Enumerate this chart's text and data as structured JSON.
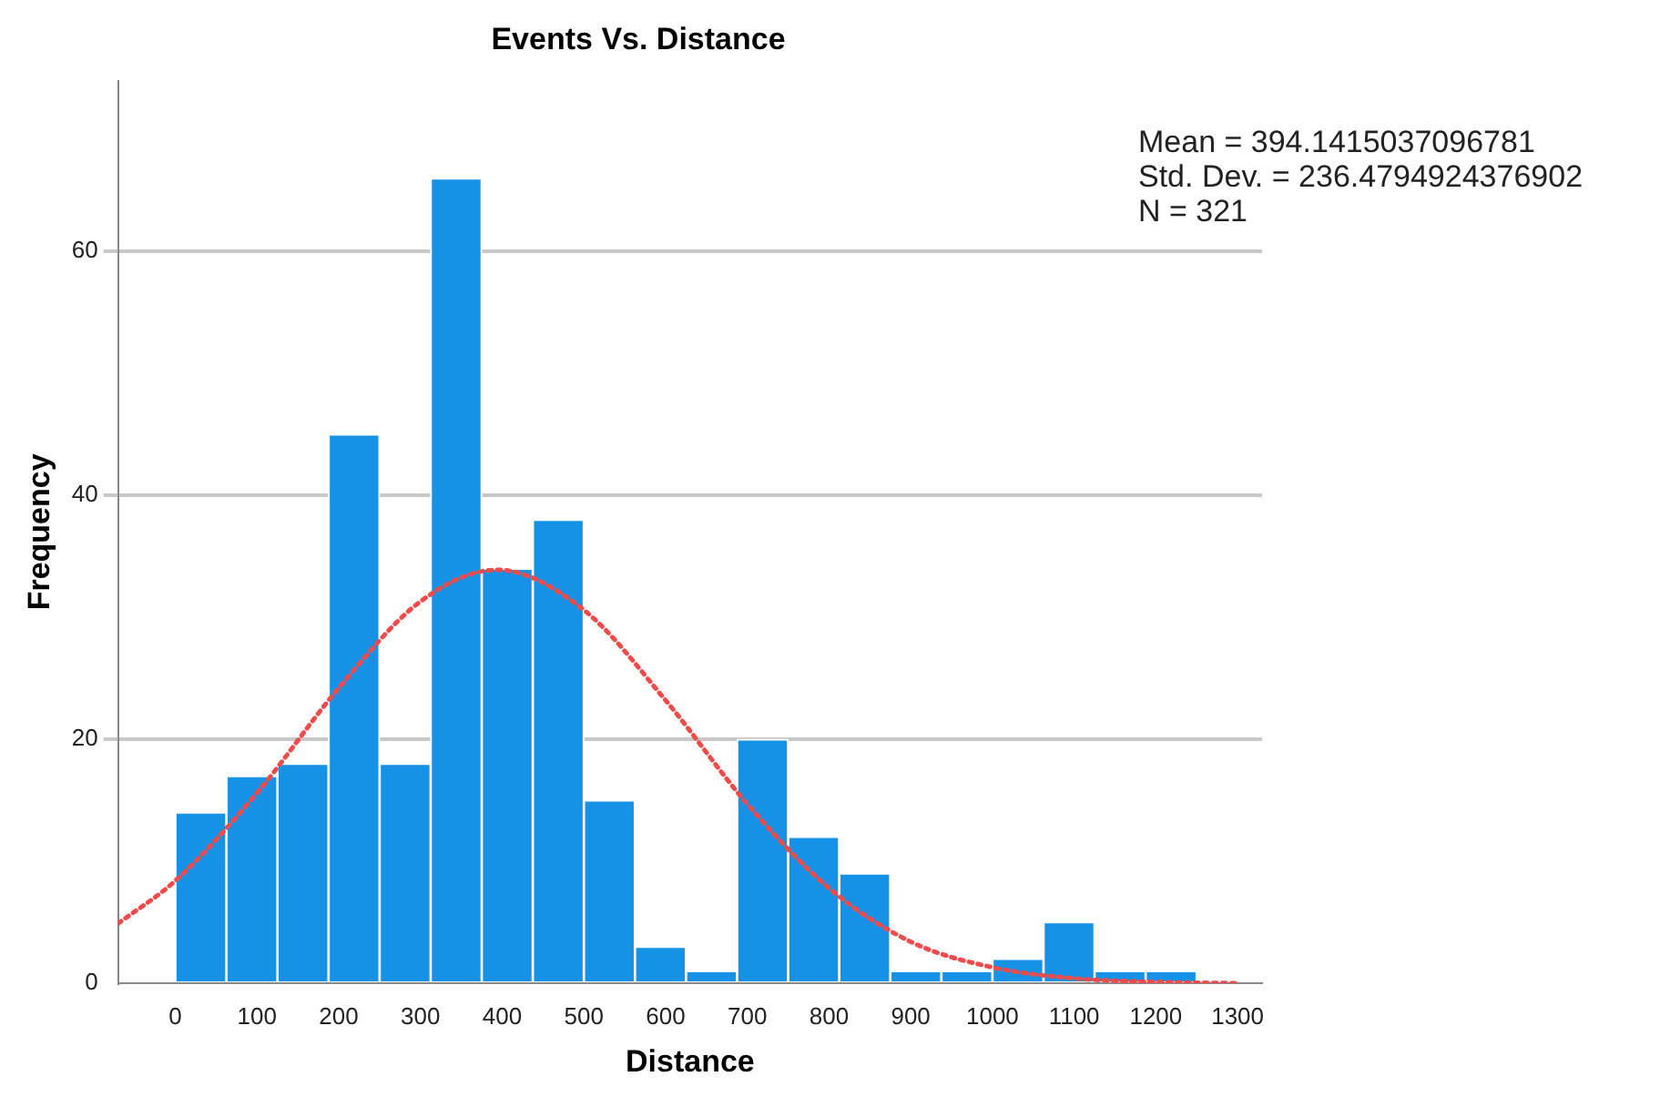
{
  "chart_data": {
    "type": "histogram",
    "title": "Events Vs. Distance",
    "xlabel": "Distance",
    "ylabel": "Frequency",
    "bins": [
      0,
      62.5,
      125,
      187.5,
      250,
      312.5,
      375,
      437.5,
      500,
      562.5,
      625,
      687.5,
      750,
      812.5,
      875,
      937.5,
      1000,
      1062.5,
      1125,
      1187.5,
      1250
    ],
    "values": [
      14,
      17,
      18,
      45,
      18,
      66,
      34,
      38,
      15,
      3,
      1,
      20,
      12,
      9,
      1,
      1,
      2,
      5,
      1,
      1
    ],
    "color": "#1592e6",
    "series": [
      {
        "type": "line",
        "color": "#ef4b4b",
        "line_style": "dotted",
        "marker": "none",
        "x": [
          -70,
          0,
          100,
          200,
          300,
          394,
          500,
          600,
          700,
          800,
          900,
          1000,
          1100,
          1200,
          1300
        ],
        "values": [
          4.9,
          8.4,
          15.6,
          24.2,
          31.3,
          33.9,
          30.6,
          23.2,
          14.7,
          7.8,
          3.4,
          1.3,
          0.4,
          0.1,
          0
        ]
      }
    ],
    "xlim": [
      -70,
      1330
    ],
    "xticks": [
      0,
      100,
      200,
      300,
      400,
      500,
      600,
      700,
      800,
      900,
      1000,
      1100,
      1200,
      1300
    ],
    "ylim": [
      0,
      74
    ],
    "yticks": [
      0,
      20,
      40,
      60
    ],
    "grid": "y",
    "legend": false,
    "annotations": [
      "Mean = 394.1415037096781",
      "Std. Dev. = 236.4794924376902",
      "N = 321"
    ]
  }
}
